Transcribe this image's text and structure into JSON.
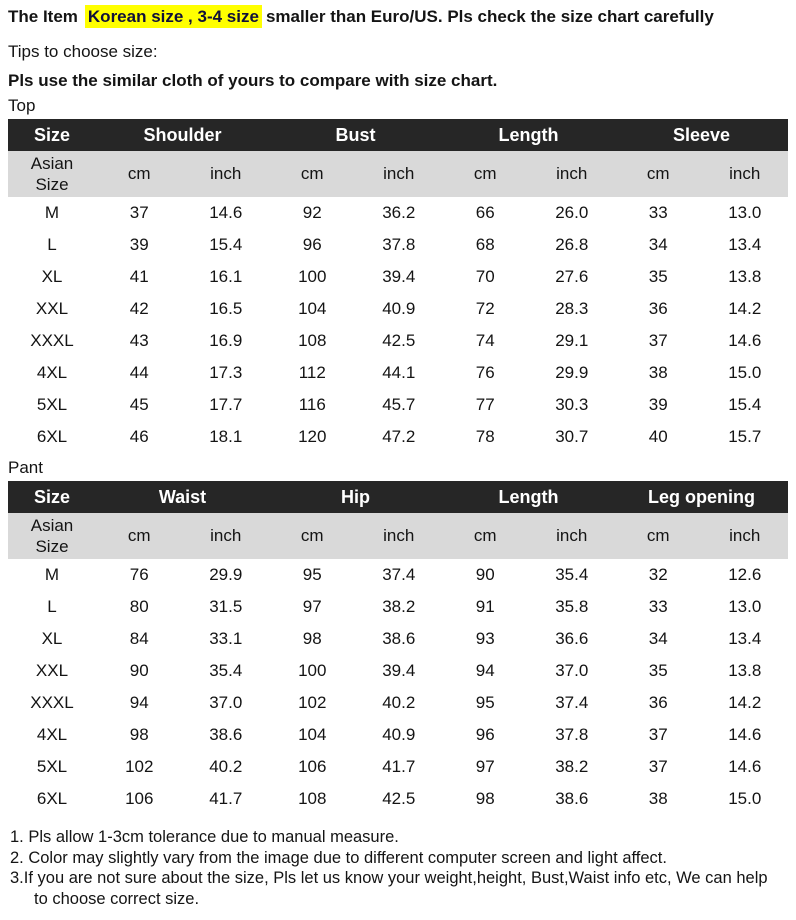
{
  "header": {
    "prefix": "The Item",
    "highlight": "Korean size , 3-4 size",
    "suffix": "smaller than Euro/US. Pls check the size chart carefully"
  },
  "tips": {
    "label": "Tips to choose size:",
    "compare": "Pls use the similar cloth of yours to compare with size chart."
  },
  "tables": [
    {
      "label": "Top",
      "corner": "Size",
      "row_header": {
        "line1": "Asian",
        "line2": "Size"
      },
      "groups": [
        "Shoulder",
        "Bust",
        "Length",
        "Sleeve"
      ],
      "units": {
        "cm": "cm",
        "inch": "inch"
      },
      "rows": [
        {
          "size": "M",
          "values": [
            "37",
            "14.6",
            "92",
            "36.2",
            "66",
            "26.0",
            "33",
            "13.0"
          ]
        },
        {
          "size": "L",
          "values": [
            "39",
            "15.4",
            "96",
            "37.8",
            "68",
            "26.8",
            "34",
            "13.4"
          ]
        },
        {
          "size": "XL",
          "values": [
            "41",
            "16.1",
            "100",
            "39.4",
            "70",
            "27.6",
            "35",
            "13.8"
          ]
        },
        {
          "size": "XXL",
          "values": [
            "42",
            "16.5",
            "104",
            "40.9",
            "72",
            "28.3",
            "36",
            "14.2"
          ]
        },
        {
          "size": "XXXL",
          "values": [
            "43",
            "16.9",
            "108",
            "42.5",
            "74",
            "29.1",
            "37",
            "14.6"
          ]
        },
        {
          "size": "4XL",
          "values": [
            "44",
            "17.3",
            "112",
            "44.1",
            "76",
            "29.9",
            "38",
            "15.0"
          ]
        },
        {
          "size": "5XL",
          "values": [
            "45",
            "17.7",
            "116",
            "45.7",
            "77",
            "30.3",
            "39",
            "15.4"
          ]
        },
        {
          "size": "6XL",
          "values": [
            "46",
            "18.1",
            "120",
            "47.2",
            "78",
            "30.7",
            "40",
            "15.7"
          ]
        }
      ]
    },
    {
      "label": "Pant",
      "corner": "Size",
      "row_header": {
        "line1": "Asian",
        "line2": "Size"
      },
      "groups": [
        "Waist",
        "Hip",
        "Length",
        "Leg opening"
      ],
      "units": {
        "cm": "cm",
        "inch": "inch"
      },
      "rows": [
        {
          "size": "M",
          "values": [
            "76",
            "29.9",
            "95",
            "37.4",
            "90",
            "35.4",
            "32",
            "12.6"
          ]
        },
        {
          "size": "L",
          "values": [
            "80",
            "31.5",
            "97",
            "38.2",
            "91",
            "35.8",
            "33",
            "13.0"
          ]
        },
        {
          "size": "XL",
          "values": [
            "84",
            "33.1",
            "98",
            "38.6",
            "93",
            "36.6",
            "34",
            "13.4"
          ]
        },
        {
          "size": "XXL",
          "values": [
            "90",
            "35.4",
            "100",
            "39.4",
            "94",
            "37.0",
            "35",
            "13.8"
          ]
        },
        {
          "size": "XXXL",
          "values": [
            "94",
            "37.0",
            "102",
            "40.2",
            "95",
            "37.4",
            "36",
            "14.2"
          ]
        },
        {
          "size": "4XL",
          "values": [
            "98",
            "38.6",
            "104",
            "40.9",
            "96",
            "37.8",
            "37",
            "14.6"
          ]
        },
        {
          "size": "5XL",
          "values": [
            "102",
            "40.2",
            "106",
            "41.7",
            "97",
            "38.2",
            "37",
            "14.6"
          ]
        },
        {
          "size": "6XL",
          "values": [
            "106",
            "41.7",
            "108",
            "42.5",
            "98",
            "38.6",
            "38",
            "15.0"
          ]
        }
      ]
    }
  ],
  "notes": [
    "1. Pls allow 1-3cm tolerance due to manual measure.",
    "2. Color may slightly vary from the image due to different computer screen and light affect.",
    "3.If you are not sure about the size, Pls let us know your weight,height, Bust,Waist info etc, We can help",
    "to choose correct size."
  ],
  "colors": {
    "highlight": "#ffff00",
    "table_header_bg": "#262626",
    "table_header_text": "#ffffff",
    "units_row_bg": "#d9d9d9",
    "text": "#141414"
  }
}
